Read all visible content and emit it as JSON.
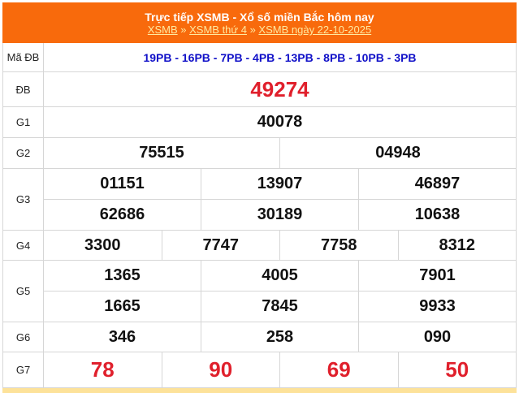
{
  "header": {
    "title": "Trực tiếp XSMB - Xổ số miền Bắc hôm nay",
    "links": [
      "XSMB",
      "XSMB thứ 4",
      "XSMB ngày 22-10-2025"
    ],
    "separator": " » "
  },
  "ma_db": {
    "label": "Mã ĐB",
    "value": "19PB - 16PB - 7PB - 4PB - 13PB - 8PB - 10PB - 3PB",
    "color": "#1010c8"
  },
  "prizes": [
    {
      "label": "ĐB",
      "rows": [
        [
          "49274"
        ]
      ]
    },
    {
      "label": "G1",
      "rows": [
        [
          "40078"
        ]
      ]
    },
    {
      "label": "G2",
      "rows": [
        [
          "75515",
          "04948"
        ]
      ]
    },
    {
      "label": "G3",
      "rows": [
        [
          "01151",
          "13907",
          "46897"
        ],
        [
          "62686",
          "30189",
          "10638"
        ]
      ]
    },
    {
      "label": "G4",
      "rows": [
        [
          "3300",
          "7747",
          "7758",
          "8312"
        ]
      ]
    },
    {
      "label": "G5",
      "rows": [
        [
          "1365",
          "4005",
          "7901"
        ],
        [
          "1665",
          "7845",
          "9933"
        ]
      ]
    },
    {
      "label": "G6",
      "rows": [
        [
          "346",
          "258",
          "090"
        ]
      ]
    },
    {
      "label": "G7",
      "rows": [
        [
          "78",
          "90",
          "69",
          "50"
        ]
      ]
    }
  ],
  "colors": {
    "header": "#f86a0c",
    "highlight": "#e0202c"
  }
}
